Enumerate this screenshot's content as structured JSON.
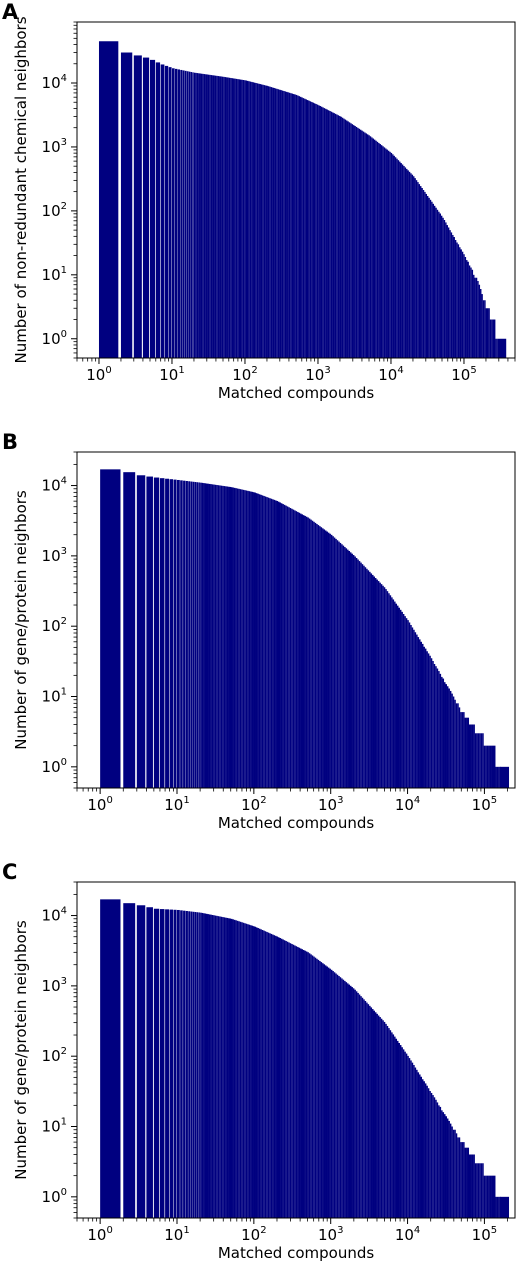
{
  "colors": {
    "bar": "#000080",
    "axis": "#000000",
    "background": "#ffffff"
  },
  "chart_data": [
    {
      "panel_label": "A",
      "type": "bar",
      "x_scale": "log",
      "y_scale": "log",
      "xlabel": "Matched compounds",
      "ylabel": "Number of non-redundant chemical neighbors",
      "xlim": [
        0.5,
        500000
      ],
      "ylim": [
        0.5,
        90000
      ],
      "x_ticks": [
        {
          "base": "10",
          "exp": "0"
        },
        {
          "base": "10",
          "exp": "1"
        },
        {
          "base": "10",
          "exp": "2"
        },
        {
          "base": "10",
          "exp": "3"
        },
        {
          "base": "10",
          "exp": "4"
        },
        {
          "base": "10",
          "exp": "5"
        }
      ],
      "y_ticks": [
        {
          "base": "10",
          "exp": "0"
        },
        {
          "base": "10",
          "exp": "1"
        },
        {
          "base": "10",
          "exp": "2"
        },
        {
          "base": "10",
          "exp": "3"
        },
        {
          "base": "10",
          "exp": "4"
        }
      ],
      "points": [
        [
          1,
          45000
        ],
        [
          2,
          30000
        ],
        [
          3,
          27000
        ],
        [
          4,
          25000
        ],
        [
          5,
          23000
        ],
        [
          6,
          21000
        ],
        [
          7,
          19500
        ],
        [
          10,
          17000
        ],
        [
          20,
          14500
        ],
        [
          50,
          12500
        ],
        [
          100,
          11000
        ],
        [
          200,
          9000
        ],
        [
          500,
          6500
        ],
        [
          1000,
          4500
        ],
        [
          2000,
          3000
        ],
        [
          5000,
          1500
        ],
        [
          10000,
          800
        ],
        [
          20000,
          350
        ],
        [
          50000,
          80
        ],
        [
          100000,
          20
        ],
        [
          150000,
          8
        ],
        [
          200000,
          3
        ],
        [
          250000,
          2
        ],
        [
          290000,
          1
        ]
      ]
    },
    {
      "panel_label": "B",
      "type": "bar",
      "x_scale": "log",
      "y_scale": "log",
      "xlabel": "Matched compounds",
      "ylabel": "Number of gene/protein neighbors",
      "xlim": [
        0.5,
        250000
      ],
      "ylim": [
        0.5,
        30000
      ],
      "x_ticks": [
        {
          "base": "10",
          "exp": "0"
        },
        {
          "base": "10",
          "exp": "1"
        },
        {
          "base": "10",
          "exp": "2"
        },
        {
          "base": "10",
          "exp": "3"
        },
        {
          "base": "10",
          "exp": "4"
        },
        {
          "base": "10",
          "exp": "5"
        }
      ],
      "y_ticks": [
        {
          "base": "10",
          "exp": "0"
        },
        {
          "base": "10",
          "exp": "1"
        },
        {
          "base": "10",
          "exp": "2"
        },
        {
          "base": "10",
          "exp": "3"
        },
        {
          "base": "10",
          "exp": "4"
        }
      ],
      "points": [
        [
          1,
          17000
        ],
        [
          2,
          15500
        ],
        [
          3,
          14000
        ],
        [
          5,
          13000
        ],
        [
          10,
          12000
        ],
        [
          20,
          11000
        ],
        [
          50,
          9500
        ],
        [
          100,
          8000
        ],
        [
          200,
          6000
        ],
        [
          500,
          3500
        ],
        [
          1000,
          2000
        ],
        [
          2000,
          1000
        ],
        [
          5000,
          350
        ],
        [
          10000,
          120
        ],
        [
          20000,
          35
        ],
        [
          50000,
          6
        ],
        [
          80000,
          3
        ],
        [
          120000,
          2
        ],
        [
          160000,
          1
        ]
      ]
    },
    {
      "panel_label": "C",
      "type": "bar",
      "x_scale": "log",
      "y_scale": "log",
      "xlabel": "Matched compounds",
      "ylabel": "Number of gene/protein neighbors",
      "xlim": [
        0.5,
        250000
      ],
      "ylim": [
        0.5,
        30000
      ],
      "x_ticks": [
        {
          "base": "10",
          "exp": "0"
        },
        {
          "base": "10",
          "exp": "1"
        },
        {
          "base": "10",
          "exp": "2"
        },
        {
          "base": "10",
          "exp": "3"
        },
        {
          "base": "10",
          "exp": "4"
        },
        {
          "base": "10",
          "exp": "5"
        }
      ],
      "y_ticks": [
        {
          "base": "10",
          "exp": "0"
        },
        {
          "base": "10",
          "exp": "1"
        },
        {
          "base": "10",
          "exp": "2"
        },
        {
          "base": "10",
          "exp": "3"
        },
        {
          "base": "10",
          "exp": "4"
        }
      ],
      "points": [
        [
          1,
          17000
        ],
        [
          2,
          15000
        ],
        [
          3,
          14000
        ],
        [
          5,
          12500
        ],
        [
          10,
          12000
        ],
        [
          20,
          11000
        ],
        [
          50,
          9000
        ],
        [
          100,
          7000
        ],
        [
          200,
          5000
        ],
        [
          500,
          3000
        ],
        [
          1000,
          1700
        ],
        [
          2000,
          900
        ],
        [
          5000,
          300
        ],
        [
          10000,
          100
        ],
        [
          20000,
          30
        ],
        [
          50000,
          6
        ],
        [
          80000,
          3
        ],
        [
          120000,
          2
        ],
        [
          160000,
          1
        ]
      ]
    }
  ]
}
